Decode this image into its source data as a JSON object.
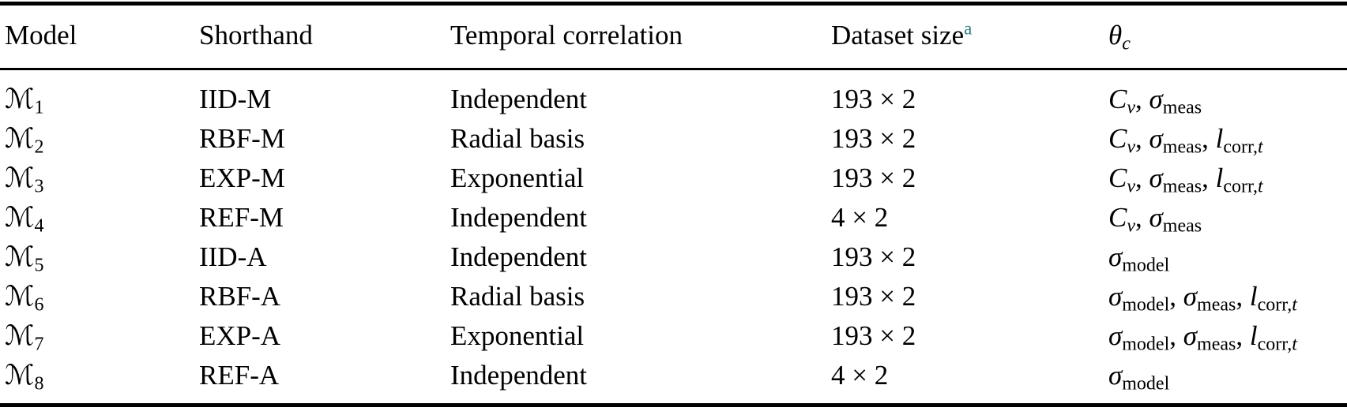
{
  "misc": {
    "separator": ", "
  },
  "colors": {
    "text": "#000000",
    "rule": "#000000",
    "background": "#ffffff",
    "footnote_marker": "#2e7d7b"
  },
  "header": {
    "model": "Model",
    "shorthand": "Shorthand",
    "temporal": "Temporal correlation",
    "dataset": "Dataset size",
    "dataset_sup": "a",
    "theta": {
      "base": "θ",
      "subi": "c"
    }
  },
  "rows": [
    {
      "model": {
        "base": "ℳ",
        "sub": "1"
      },
      "shorthand": "IID-M",
      "temporal": "Independent",
      "dataset": "193 × 2",
      "params": [
        {
          "base": "C",
          "subi": "v"
        },
        {
          "base": "σ",
          "sub": "meas"
        }
      ]
    },
    {
      "model": {
        "base": "ℳ",
        "sub": "2"
      },
      "shorthand": "RBF-M",
      "temporal": "Radial basis",
      "dataset": "193 × 2",
      "params": [
        {
          "base": "C",
          "subi": "v"
        },
        {
          "base": "σ",
          "sub": "meas"
        },
        {
          "base": "l",
          "sub": "corr,",
          "subi": "t"
        }
      ]
    },
    {
      "model": {
        "base": "ℳ",
        "sub": "3"
      },
      "shorthand": "EXP-M",
      "temporal": "Exponential",
      "dataset": "193 × 2",
      "params": [
        {
          "base": "C",
          "subi": "v"
        },
        {
          "base": "σ",
          "sub": "meas"
        },
        {
          "base": "l",
          "sub": "corr,",
          "subi": "t"
        }
      ]
    },
    {
      "model": {
        "base": "ℳ",
        "sub": "4"
      },
      "shorthand": "REF-M",
      "temporal": "Independent",
      "dataset": "4 × 2",
      "params": [
        {
          "base": "C",
          "subi": "v"
        },
        {
          "base": "σ",
          "sub": "meas"
        }
      ]
    },
    {
      "model": {
        "base": "ℳ",
        "sub": "5"
      },
      "shorthand": "IID-A",
      "temporal": "Independent",
      "dataset": "193 × 2",
      "params": [
        {
          "base": "σ",
          "sub": "model"
        }
      ]
    },
    {
      "model": {
        "base": "ℳ",
        "sub": "6"
      },
      "shorthand": "RBF-A",
      "temporal": "Radial basis",
      "dataset": "193 × 2",
      "params": [
        {
          "base": "σ",
          "sub": "model"
        },
        {
          "base": "σ",
          "sub": "meas"
        },
        {
          "base": "l",
          "sub": "corr,",
          "subi": "t"
        }
      ]
    },
    {
      "model": {
        "base": "ℳ",
        "sub": "7"
      },
      "shorthand": "EXP-A",
      "temporal": "Exponential",
      "dataset": "193 × 2",
      "params": [
        {
          "base": "σ",
          "sub": "model"
        },
        {
          "base": "σ",
          "sub": "meas"
        },
        {
          "base": "l",
          "sub": "corr,",
          "subi": "t"
        }
      ]
    },
    {
      "model": {
        "base": "ℳ",
        "sub": "8"
      },
      "shorthand": "REF-A",
      "temporal": "Independent",
      "dataset": "4 × 2",
      "params": [
        {
          "base": "σ",
          "sub": "model"
        }
      ]
    }
  ]
}
